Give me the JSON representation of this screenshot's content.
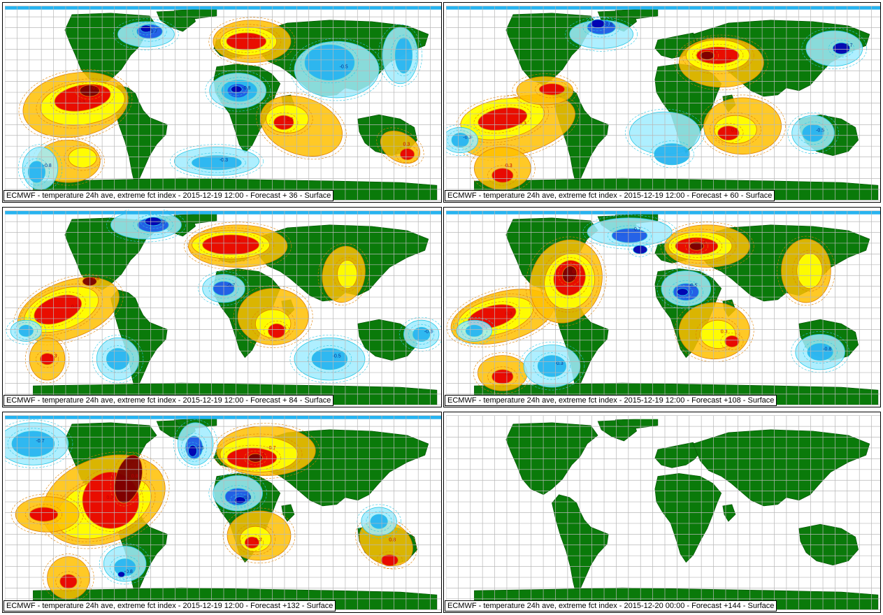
{
  "panels": [
    {
      "caption": "ECMWF - temperature 24h ave, extreme fct index - 2015-12-19 12:00 - Forecast + 36 - Surface",
      "variant": 0,
      "has_field": true
    },
    {
      "caption": "ECMWF - temperature 24h ave, extreme fct index - 2015-12-19 12:00 - Forecast + 60 - Surface",
      "variant": 1,
      "has_field": true
    },
    {
      "caption": "ECMWF - temperature 24h ave, extreme fct index - 2015-12-19 12:00 - Forecast + 84 - Surface",
      "variant": 2,
      "has_field": true
    },
    {
      "caption": "ECMWF - temperature 24h ave, extreme fct index - 2015-12-19 12:00 - Forecast +108 - Surface",
      "variant": 3,
      "has_field": true
    },
    {
      "caption": "ECMWF - temperature 24h ave, extreme fct index - 2015-12-19 12:00 - Forecast +132 - Surface",
      "variant": 4,
      "has_field": true
    },
    {
      "caption": "ECMWF - temperature 24h ave, extreme fct index - 2015-12-20 00:00 - Forecast +144 - Surface",
      "variant": 5,
      "has_field": false
    }
  ],
  "contour_labels": [
    "0.3",
    "0.5",
    "0.7",
    "0.8",
    "-0.3",
    "-0.5",
    "-0.7",
    "-0.8"
  ],
  "colors": {
    "land": "#0a7a0a",
    "grid": "#b8b8b8",
    "warm_strong": "#7a0000",
    "warm_high": "#e80000",
    "warm_mid": "#ffff00",
    "warm_low": "#ffc000",
    "warm_line": "#e08000",
    "cold_strong": "#0000b0",
    "cold_high": "#1e5ae6",
    "cold_mid": "#28b4f0",
    "cold_low": "#a0ecff",
    "cold_line": "#28c8e6"
  }
}
